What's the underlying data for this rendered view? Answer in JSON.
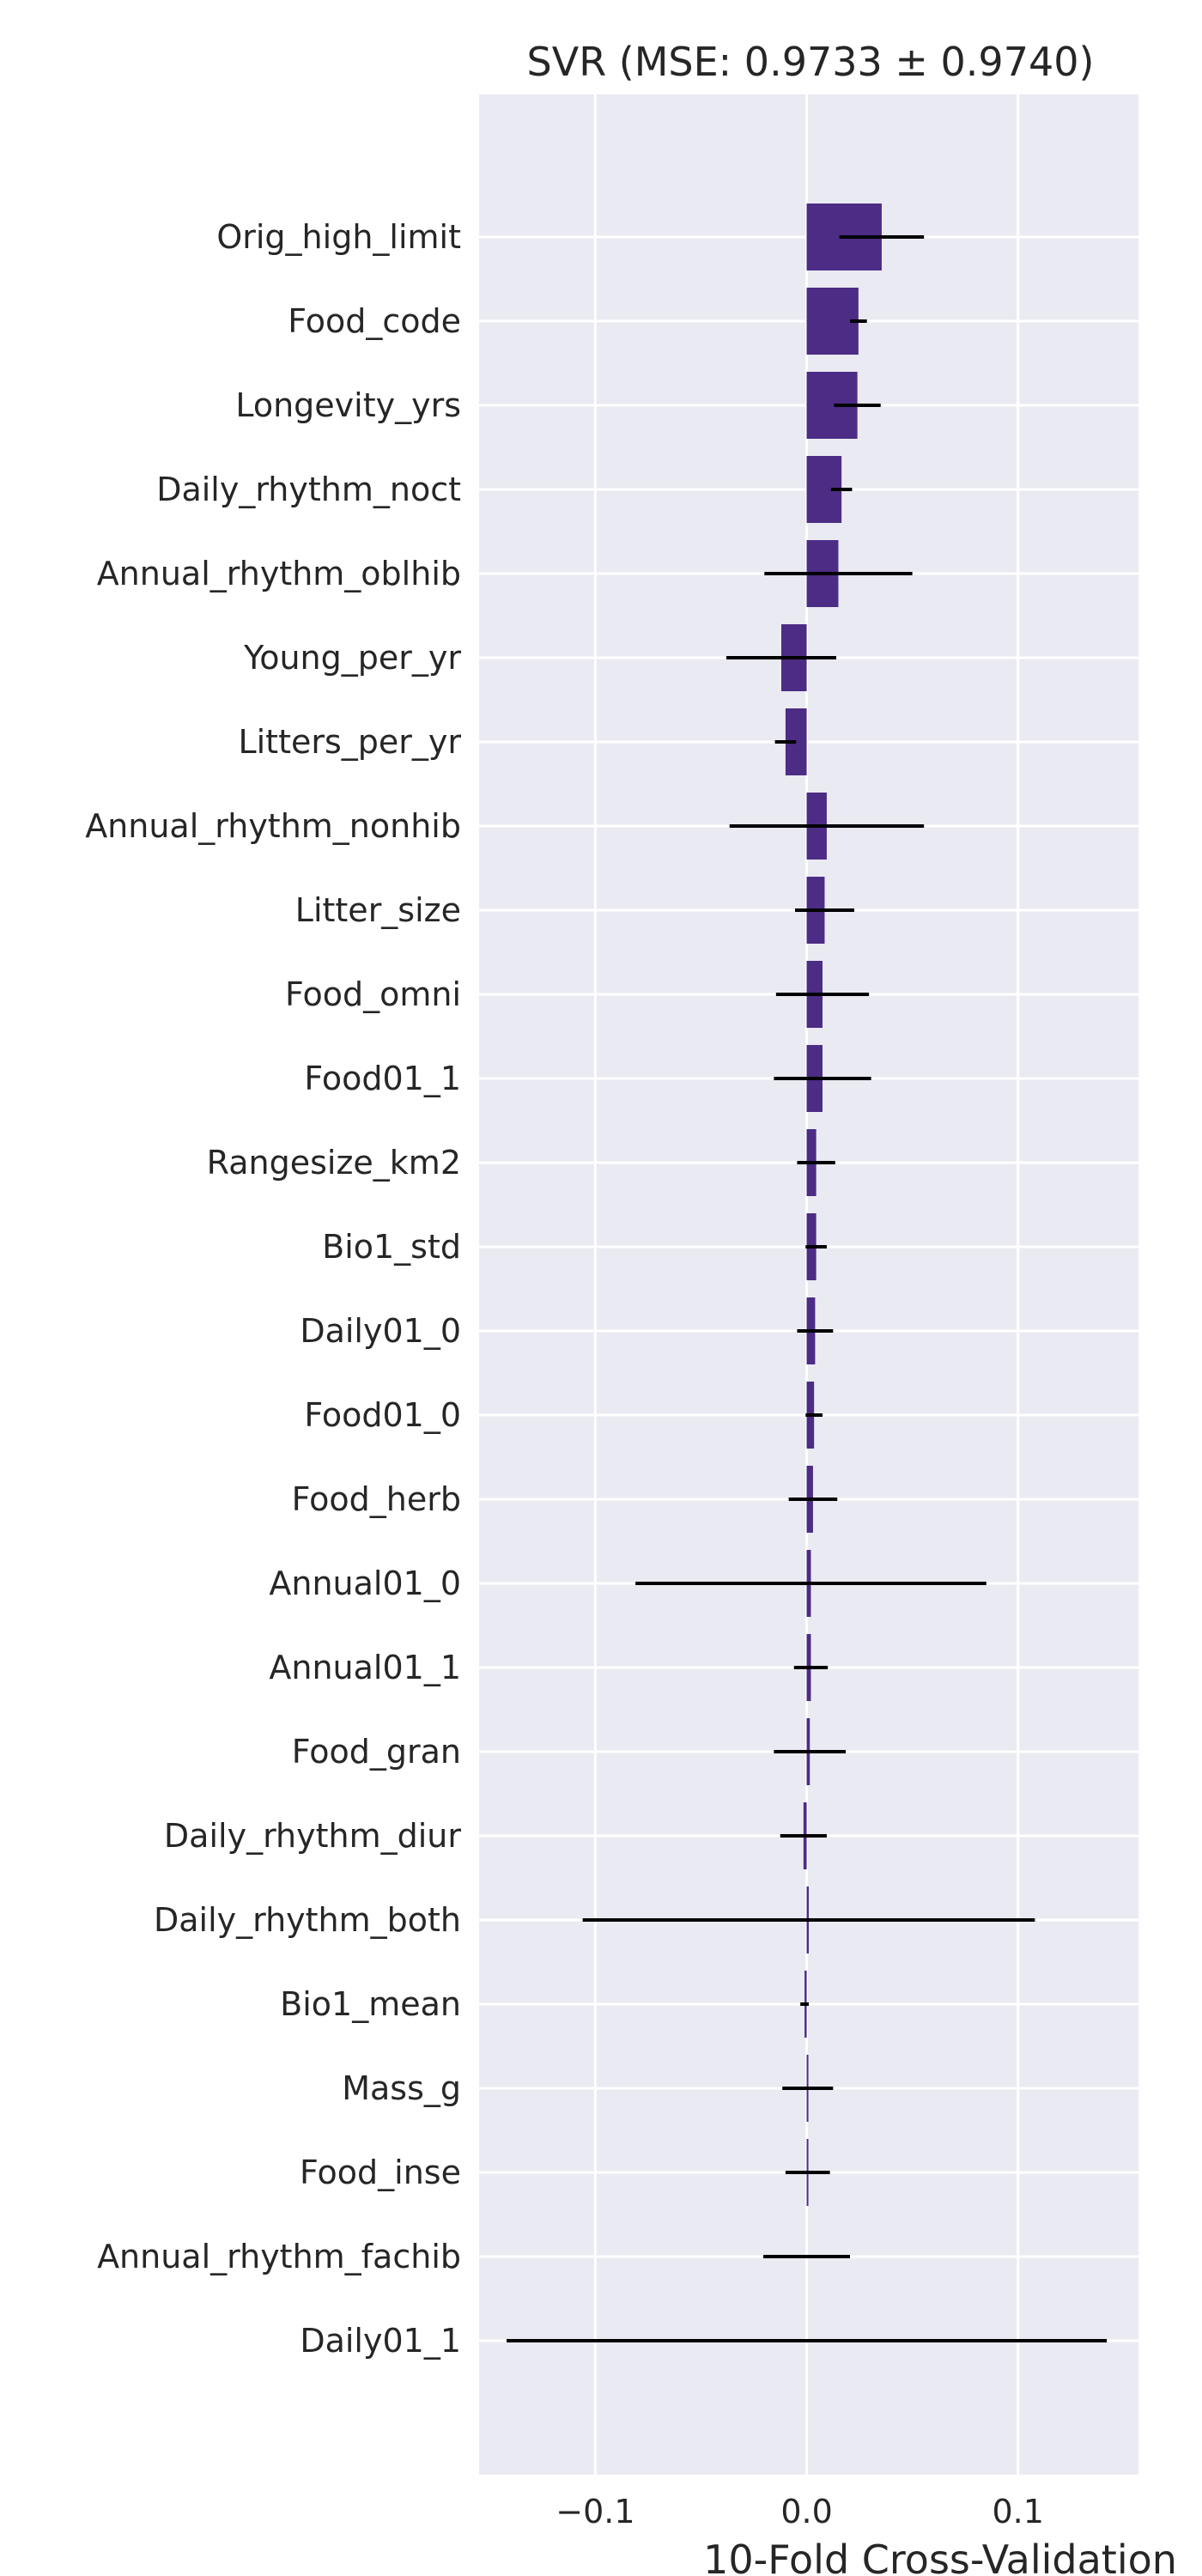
{
  "chart_data": {
    "type": "bar",
    "orientation": "horizontal",
    "title": "SVR (MSE: 0.9733 ± 0.9740)",
    "xlabel": "10-Fold Cross-Validation",
    "ylabel": "",
    "xlim": [
      -0.155,
      0.157
    ],
    "xticks": [
      -0.1,
      0.0,
      0.1
    ],
    "xtick_labels": [
      "−0.1",
      "0.0",
      "0.1"
    ],
    "grid": true,
    "bar_color": "#4c2c84",
    "error_color": "#000000",
    "background": "#eaeaf2",
    "categories": [
      "Orig_high_limit",
      "Food_code",
      "Longevity_yrs",
      "Daily_rhythm_noct",
      "Annual_rhythm_oblhib",
      "Young_per_yr",
      "Litters_per_yr",
      "Annual_rhythm_nonhib",
      "Litter_size",
      "Food_omni",
      "Food01_1",
      "Rangesize_km2",
      "Bio1_std",
      "Daily01_0",
      "Food01_0",
      "Food_herb",
      "Annual01_0",
      "Annual01_1",
      "Food_gran",
      "Daily_rhythm_diur",
      "Daily_rhythm_both",
      "Bio1_mean",
      "Mass_g",
      "Food_inse",
      "Annual_rhythm_fachib",
      "Daily01_1"
    ],
    "values": [
      0.0355,
      0.0245,
      0.024,
      0.0165,
      0.015,
      -0.012,
      -0.01,
      0.0095,
      0.0085,
      0.0075,
      0.0075,
      0.0045,
      0.0045,
      0.004,
      0.0035,
      0.003,
      0.002,
      0.002,
      0.0015,
      -0.0015,
      0.001,
      -0.001,
      0.0005,
      0.0005,
      0.0,
      0.0
    ],
    "errors": [
      0.02,
      0.004,
      0.011,
      0.005,
      0.035,
      0.026,
      0.005,
      0.046,
      0.014,
      0.022,
      0.023,
      0.009,
      0.005,
      0.0085,
      0.004,
      0.0115,
      0.083,
      0.008,
      0.017,
      0.011,
      0.107,
      0.002,
      0.012,
      0.0105,
      0.0205,
      0.142
    ]
  }
}
